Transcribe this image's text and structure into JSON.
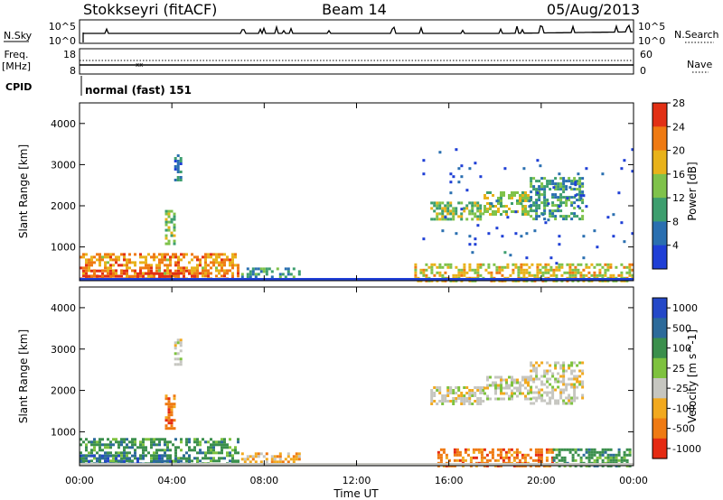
{
  "header": {
    "station": "Stokkseyri (fitACF)",
    "beam": "Beam 14",
    "date": "05/Aug/2013"
  },
  "top_panels": {
    "nsky_label": "N.Sky",
    "nsearch_label": "N.Search",
    "noise_ticks_left": [
      "10^5",
      "10^0"
    ],
    "noise_ticks_right": [
      "10^5",
      "10^0"
    ],
    "freq_label_line1": "Freq.",
    "freq_label_line2": "[MHz]",
    "freq_ticks": [
      "18",
      "8"
    ],
    "nave_ticks": [
      "60",
      "0"
    ],
    "nave_label": "Nave",
    "cpid_label": "CPID",
    "cpid_value": "normal (fast) 151"
  },
  "axes": {
    "ylabel": "Slant Range [km]",
    "xlabel": "Time UT",
    "x_ticks": [
      "00:00",
      "04:00",
      "08:00",
      "12:00",
      "16:00",
      "20:00",
      "00:00"
    ],
    "y_ticks": [
      "1000",
      "2000",
      "3000",
      "4000"
    ]
  },
  "chart_data": [
    {
      "type": "heatmap",
      "quantity": "Power",
      "colorbar_label": "Power [dB]",
      "colorbar_ticks": [
        "4",
        "8",
        "12",
        "16",
        "20",
        "24",
        "28"
      ],
      "color_range": [
        0,
        30
      ],
      "colors": [
        "#1f3fd6",
        "#2a6fb0",
        "#3d9e6e",
        "#7fc24a",
        "#e8b21a",
        "#ef7a12",
        "#e23015"
      ],
      "x_range_hours": [
        0,
        24
      ],
      "y_range_km": [
        180,
        4500
      ],
      "echo_regions": [
        {
          "t0": 0.0,
          "t1": 6.9,
          "r0": 200,
          "r1": 850,
          "level": 22
        },
        {
          "t0": 0.0,
          "t1": 4.7,
          "r0": 200,
          "r1": 450,
          "level": 28
        },
        {
          "t0": 3.7,
          "t1": 4.1,
          "r0": 1100,
          "r1": 1900,
          "level": 14
        },
        {
          "t0": 4.1,
          "t1": 4.4,
          "r0": 2600,
          "r1": 3250,
          "level": 8
        },
        {
          "t0": 7.0,
          "t1": 9.5,
          "r0": 200,
          "r1": 500,
          "level": 10
        },
        {
          "t0": 15.2,
          "t1": 17.5,
          "r0": 1700,
          "r1": 2100,
          "level": 14
        },
        {
          "t0": 17.5,
          "t1": 19.5,
          "r0": 1800,
          "r1": 2350,
          "level": 16
        },
        {
          "t0": 19.5,
          "t1": 21.8,
          "r0": 1700,
          "r1": 2700,
          "level": 10
        },
        {
          "t0": 14.5,
          "t1": 23.9,
          "r0": 200,
          "r1": 600,
          "level": 18
        },
        {
          "t0": 14.5,
          "t1": 23.9,
          "r0": 600,
          "r1": 3400,
          "level": 4
        }
      ]
    },
    {
      "type": "heatmap",
      "quantity": "Velocity",
      "colorbar_label": "Velocity [m s^-1]",
      "colorbar_ticks": [
        "1000",
        "500",
        "100",
        "25",
        "-25",
        "-100",
        "-500",
        "-1000"
      ],
      "color_levels": [
        1000,
        500,
        100,
        25,
        -25,
        -100,
        -500,
        -1000
      ],
      "colors": [
        "#2448c8",
        "#2c6a9a",
        "#3b8f4c",
        "#7ec23e",
        "#c6c6c0",
        "#f2a91e",
        "#ef7a12",
        "#e52a12"
      ],
      "x_range_hours": [
        0,
        24
      ],
      "y_range_km": [
        180,
        4500
      ],
      "echo_regions": [
        {
          "t0": 0.0,
          "t1": 6.9,
          "r0": 200,
          "r1": 850,
          "level": 100
        },
        {
          "t0": 0.0,
          "t1": 4.7,
          "r0": 200,
          "r1": 450,
          "level": 500
        },
        {
          "t0": 3.7,
          "t1": 4.1,
          "r0": 1100,
          "r1": 1900,
          "level": -500
        },
        {
          "t0": 4.1,
          "t1": 4.4,
          "r0": 2600,
          "r1": 3250,
          "level": 0
        },
        {
          "t0": 7.0,
          "t1": 9.5,
          "r0": 200,
          "r1": 500,
          "level": -100
        },
        {
          "t0": 15.2,
          "t1": 17.5,
          "r0": 1700,
          "r1": 2100,
          "level": 0
        },
        {
          "t0": 17.5,
          "t1": 19.5,
          "r0": 1800,
          "r1": 2350,
          "level": 0
        },
        {
          "t0": 19.5,
          "t1": 21.8,
          "r0": 1700,
          "r1": 2700,
          "level": 0
        },
        {
          "t0": 15.5,
          "t1": 20.5,
          "r0": 200,
          "r1": 600,
          "level": -500
        },
        {
          "t0": 20.5,
          "t1": 23.9,
          "r0": 200,
          "r1": 600,
          "level": 100
        }
      ]
    }
  ]
}
